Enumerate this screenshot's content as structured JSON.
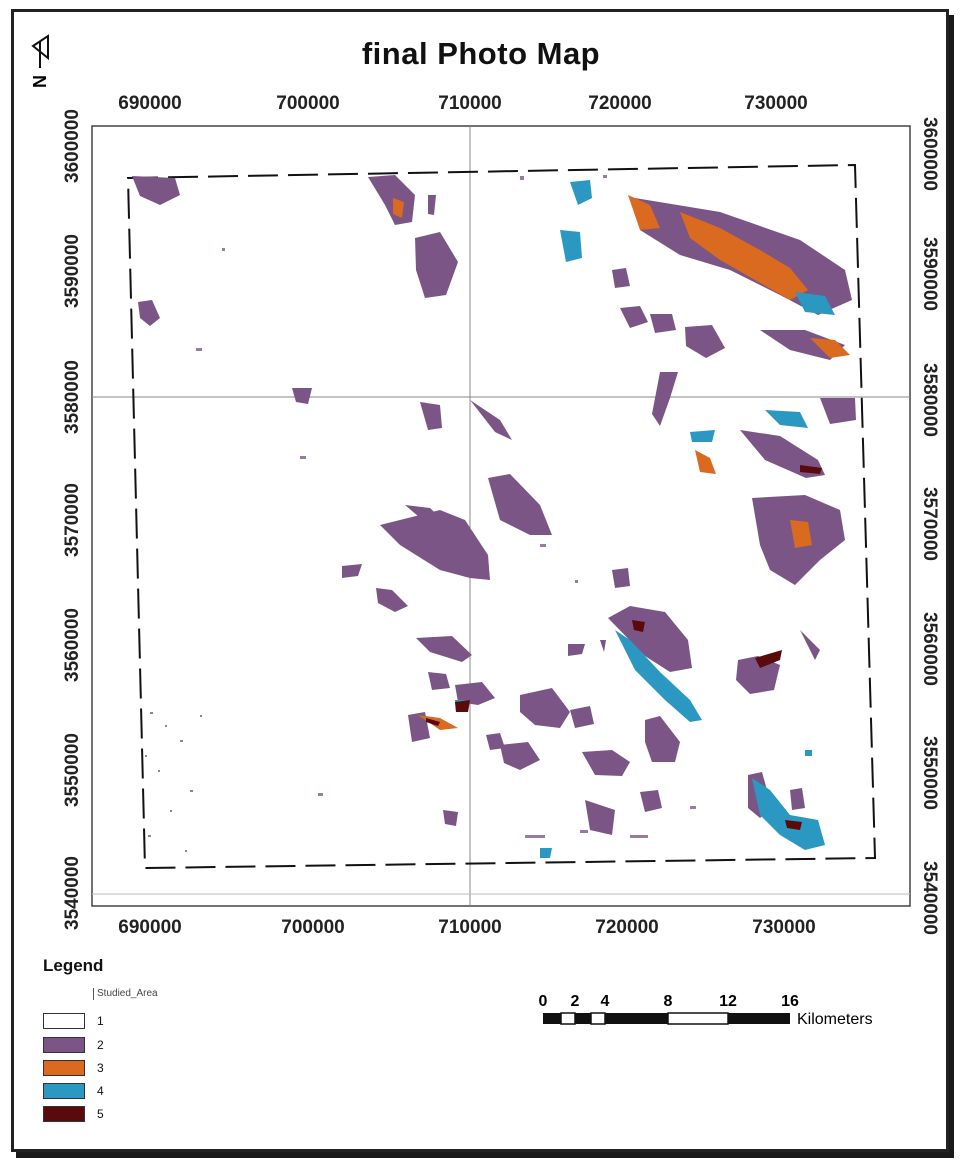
{
  "map": {
    "title": "final Photo Map",
    "x_ticks": [
      "690000",
      "700000",
      "710000",
      "720000",
      "730000"
    ],
    "y_ticks": [
      "3600000",
      "3590000",
      "3580000",
      "3570000",
      "3560000",
      "3550000",
      "3540000"
    ],
    "north_label": "N"
  },
  "legend": {
    "title": "Legend",
    "studied_area_label": "Studied_Area",
    "classes": [
      {
        "label": "1",
        "color": "#ffffff"
      },
      {
        "label": "2",
        "color": "#7b5585"
      },
      {
        "label": "3",
        "color": "#d96a1f"
      },
      {
        "label": "4",
        "color": "#2a98c0"
      },
      {
        "label": "5",
        "color": "#5a0a0a"
      }
    ]
  },
  "scale_bar": {
    "ticks": [
      "0",
      "2",
      "4",
      "8",
      "12",
      "16"
    ],
    "unit": "Kilometers"
  }
}
